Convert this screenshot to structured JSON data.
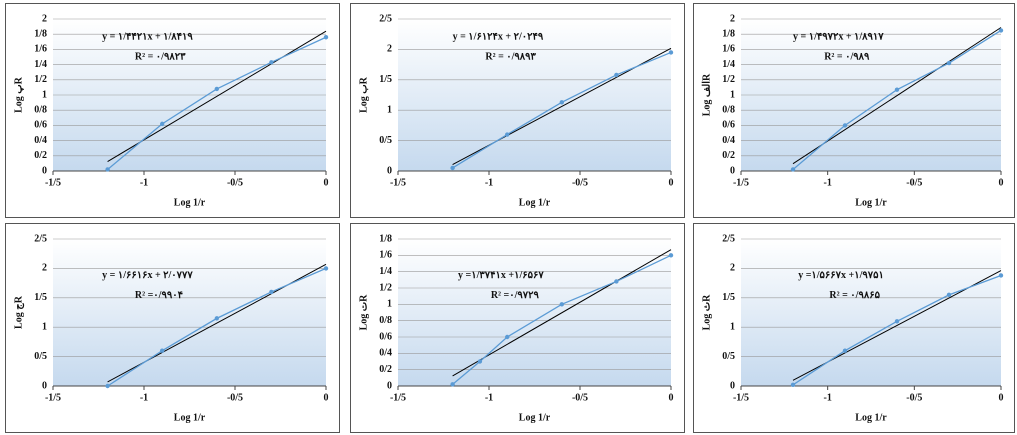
{
  "chart_data": [
    {
      "type": "line",
      "equation": "y = ۱/۴۴۲۱x + ۱/۸۴۱۹",
      "r_squared": "R² = ۰/۹۸۲۳",
      "x_label": "Log 1/r",
      "y_label": "Log پR",
      "x": [
        -1.2,
        -0.9,
        -0.6,
        -0.3,
        0
      ],
      "values": [
        0.02,
        0.62,
        1.08,
        1.43,
        1.76
      ],
      "color": "#5b9bd5",
      "trend_color": "#000000",
      "xlim": [
        -1.5,
        0
      ],
      "xticks": [
        {
          "value": -1.5,
          "label": "-1/5"
        },
        -1,
        {
          "value": -0.5,
          "label": "-0/5"
        },
        0
      ],
      "ylim": [
        0,
        2
      ],
      "yticks": [
        0,
        {
          "value": 0.2,
          "label": "0/2"
        },
        {
          "value": 0.4,
          "label": "0/4"
        },
        {
          "value": 0.6,
          "label": "0/6"
        },
        {
          "value": 0.8,
          "label": "0/8"
        },
        1,
        {
          "value": 1.2,
          "label": "1/2"
        },
        {
          "value": 1.4,
          "label": "1/4"
        },
        {
          "value": 1.6,
          "label": "1/6"
        },
        {
          "value": 1.8,
          "label": "1/8"
        },
        2
      ],
      "grid": true
    },
    {
      "type": "line",
      "equation": "y = ۱/۶۱۲۴x + ۲/۰۲۴۹",
      "r_squared": "R² = ۰/۹۸۹۳",
      "x_label": "Log 1/r",
      "y_label": "Log بR",
      "x": [
        -1.2,
        -0.9,
        -0.6,
        -0.3,
        0
      ],
      "values": [
        0.05,
        0.6,
        1.13,
        1.58,
        1.95
      ],
      "color": "#5b9bd5",
      "trend_color": "#000000",
      "xlim": [
        -1.5,
        0
      ],
      "xticks": [
        {
          "value": -1.5,
          "label": "-1/5"
        },
        -1,
        {
          "value": -0.5,
          "label": "-0/5"
        },
        0
      ],
      "ylim": [
        0,
        2.5
      ],
      "yticks": [
        0,
        {
          "value": 0.5,
          "label": "0/5"
        },
        1,
        {
          "value": 1.5,
          "label": "1/5"
        },
        2,
        {
          "value": 2.5,
          "label": "2/5"
        }
      ],
      "grid": true
    },
    {
      "type": "line",
      "equation": "y = ۱/۴۹۷۲x + ۱/۸۹۱۷",
      "r_squared": "R² = ۰/۹۸۹",
      "x_label": "Log 1/r",
      "y_label": "Log الفR",
      "x": [
        -1.2,
        -0.9,
        -0.6,
        -0.3,
        0
      ],
      "values": [
        0.02,
        0.6,
        1.07,
        1.42,
        1.85
      ],
      "color": "#5b9bd5",
      "trend_color": "#000000",
      "xlim": [
        -1.5,
        0
      ],
      "xticks": [
        {
          "value": -1.5,
          "label": "-1/5"
        },
        -1,
        {
          "value": -0.5,
          "label": "-0/5"
        },
        0
      ],
      "ylim": [
        0,
        2
      ],
      "yticks": [
        0,
        {
          "value": 0.2,
          "label": "0/2"
        },
        {
          "value": 0.4,
          "label": "0/4"
        },
        {
          "value": 0.6,
          "label": "0/6"
        },
        {
          "value": 0.8,
          "label": "0/8"
        },
        1,
        {
          "value": 1.2,
          "label": "1/2"
        },
        {
          "value": 1.4,
          "label": "1/4"
        },
        {
          "value": 1.6,
          "label": "1/6"
        },
        {
          "value": 1.8,
          "label": "1/8"
        },
        2
      ],
      "grid": true
    },
    {
      "type": "line",
      "equation": "y = ۱/۶۶۱۶x + ۲/۰۷۷۷",
      "r_squared": "R² =۰/۹۹۰۴",
      "x_label": "Log 1/r",
      "y_label": "Log جR",
      "x": [
        -1.2,
        -0.9,
        -0.6,
        -0.3,
        0
      ],
      "values": [
        0,
        0.6,
        1.15,
        1.6,
        2.0
      ],
      "color": "#5b9bd5",
      "trend_color": "#000000",
      "xlim": [
        -1.5,
        0
      ],
      "xticks": [
        {
          "value": -1.5,
          "label": "-1/5"
        },
        -1,
        {
          "value": -0.5,
          "label": "-0/5"
        },
        0
      ],
      "ylim": [
        0,
        2.5
      ],
      "yticks": [
        0,
        {
          "value": 0.5,
          "label": "0/5"
        },
        1,
        {
          "value": 1.5,
          "label": "1/5"
        },
        2,
        {
          "value": 2.5,
          "label": "2/5"
        }
      ],
      "grid": true
    },
    {
      "type": "line",
      "equation": "y =۱/۳۷۴۱x +۱/۶۵۶۷",
      "r_squared": "R² =۰/۹۷۲۹",
      "x_label": "Log 1/r",
      "y_label": "Log تR",
      "x": [
        -1.2,
        -1.05,
        -0.9,
        -0.6,
        -0.3,
        0
      ],
      "values": [
        0.02,
        0.3,
        0.6,
        1.0,
        1.28,
        1.6
      ],
      "color": "#5b9bd5",
      "trend_color": "#000000",
      "xlim": [
        -1.5,
        0
      ],
      "xticks": [
        {
          "value": -1.5,
          "label": "-1/5"
        },
        -1,
        {
          "value": -0.5,
          "label": "-0/5"
        },
        0
      ],
      "ylim": [
        0,
        1.8
      ],
      "yticks": [
        0,
        {
          "value": 0.2,
          "label": "0/2"
        },
        {
          "value": 0.4,
          "label": "0/4"
        },
        {
          "value": 0.6,
          "label": "0/6"
        },
        {
          "value": 0.8,
          "label": "0/8"
        },
        1,
        {
          "value": 1.2,
          "label": "1/2"
        },
        {
          "value": 1.4,
          "label": "1/4"
        },
        {
          "value": 1.6,
          "label": "1/6"
        },
        {
          "value": 1.8,
          "label": "1/8"
        }
      ],
      "grid": true
    },
    {
      "type": "line",
      "equation": "y =۱/۵۶۶۷x +۱/۹۷۵۱",
      "r_squared": "R² = ۰/۹۸۶۵",
      "x_label": "Log 1/r",
      "y_label": "Log ثR",
      "x": [
        -1.2,
        -0.9,
        -0.6,
        -0.3,
        0
      ],
      "values": [
        0.02,
        0.6,
        1.1,
        1.55,
        1.88
      ],
      "color": "#5b9bd5",
      "trend_color": "#000000",
      "xlim": [
        -1.5,
        0
      ],
      "xticks": [
        {
          "value": -1.5,
          "label": "-1/5"
        },
        -1,
        {
          "value": -0.5,
          "label": "-0/5"
        },
        0
      ],
      "ylim": [
        0,
        2.5
      ],
      "yticks": [
        0,
        {
          "value": 0.5,
          "label": "0/5"
        },
        1,
        {
          "value": 1.5,
          "label": "1/5"
        },
        2,
        {
          "value": 2.5,
          "label": "2/5"
        }
      ],
      "grid": true
    }
  ]
}
